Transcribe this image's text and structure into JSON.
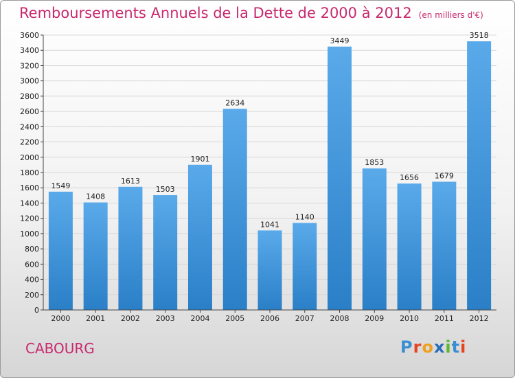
{
  "title": "Remboursements Annuels de la Dette de 2000 à 2012",
  "unit": "(en milliers d'€)",
  "city": "CABOURG",
  "logo": "Proxiti",
  "colors": {
    "title": "#c8286e",
    "bar_light": "#5aaaea",
    "bar_dark": "#2a7fc7"
  },
  "chart_data": {
    "type": "bar",
    "categories": [
      "2000",
      "2001",
      "2002",
      "2003",
      "2004",
      "2005",
      "2006",
      "2007",
      "2008",
      "2009",
      "2010",
      "2011",
      "2012"
    ],
    "values": [
      1549,
      1408,
      1613,
      1503,
      1901,
      2634,
      1041,
      1140,
      3449,
      1853,
      1656,
      1679,
      3518
    ],
    "ylim": [
      0,
      3600
    ],
    "yticks": [
      0,
      200,
      400,
      600,
      800,
      1000,
      1200,
      1400,
      1600,
      1800,
      2000,
      2200,
      2400,
      2600,
      2800,
      3000,
      3200,
      3400,
      3600
    ],
    "grid": true,
    "title": "Remboursements Annuels de la Dette de 2000 à 2012",
    "xlabel": "",
    "ylabel": ""
  }
}
